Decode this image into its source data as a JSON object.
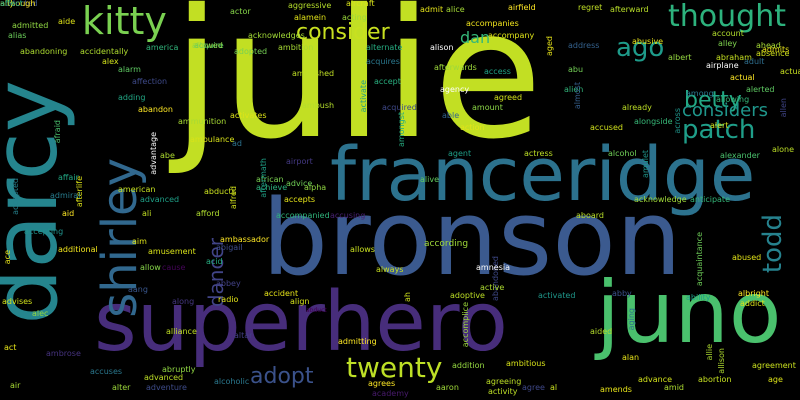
{
  "words": [
    {
      "text": "julie",
      "color": "#c2df23"
    },
    {
      "text": "bronson",
      "color": "#3b5a8f"
    },
    {
      "text": "franceridge",
      "color": "#2c728e"
    },
    {
      "text": "superhero",
      "color": "#472d7b"
    },
    {
      "text": "darcy",
      "color": "#25858e"
    },
    {
      "text": "juno",
      "color": "#4ac16d"
    },
    {
      "text": "shirley",
      "color": "#31688e"
    },
    {
      "text": "kitty",
      "color": "#7ad151"
    },
    {
      "text": "thought",
      "color": "#2db27d"
    },
    {
      "text": "twenty",
      "color": "#bddf26"
    },
    {
      "text": "consider",
      "color": "#c8e020"
    },
    {
      "text": "patch",
      "color": "#1f9e89"
    },
    {
      "text": "betty",
      "color": "#22a884"
    },
    {
      "text": "todd",
      "color": "#26828e"
    },
    {
      "text": "adopt",
      "color": "#3b528b"
    },
    {
      "text": "dancer",
      "color": "#414487"
    },
    {
      "text": "ago",
      "color": "#1e9b8a"
    },
    {
      "text": "considers",
      "color": "#1f968b"
    },
    {
      "text": "dan",
      "color": "#35b779"
    },
    {
      "text": "according",
      "color": "#a0da39"
    },
    {
      "text": "abduct",
      "color": "#440154"
    },
    {
      "text": "abandoned",
      "color": "#3e4989"
    },
    {
      "text": "advice",
      "color": "#70cf57"
    },
    {
      "text": "admitted",
      "color": "#90d743"
    },
    {
      "text": "actor",
      "color": "#86d549"
    },
    {
      "text": "aggressive",
      "color": "#b5de2b"
    },
    {
      "text": "aircraft",
      "color": "#d8e219"
    },
    {
      "text": "admit",
      "color": "#e5e419"
    },
    {
      "text": "alice",
      "color": "#a5db36"
    },
    {
      "text": "airfield",
      "color": "#fde725"
    },
    {
      "text": "regret",
      "color": "#c0df25"
    },
    {
      "text": "afterward",
      "color": "#b8de29"
    },
    {
      "text": "acting",
      "color": "#9bd93c"
    },
    {
      "text": "alamein",
      "color": "#e2e418"
    },
    {
      "text": "aide",
      "color": "#dfe318"
    },
    {
      "text": "alias",
      "color": "#6ccd5a"
    },
    {
      "text": "abandoning",
      "color": "#addc30"
    },
    {
      "text": "acknowledges",
      "color": "#a2da37"
    },
    {
      "text": "acquire",
      "color": "#52c569"
    },
    {
      "text": "accidentally",
      "color": "#b0dd2f"
    },
    {
      "text": "alex",
      "color": "#d2e21b"
    },
    {
      "text": "alarm",
      "color": "#5ec962"
    },
    {
      "text": "america",
      "color": "#31b57b"
    },
    {
      "text": "allowed",
      "color": "#8bd646"
    },
    {
      "text": "adopted",
      "color": "#75d054"
    },
    {
      "text": "ambition",
      "color": "#a8db34"
    },
    {
      "text": "alternate",
      "color": "#26ad81"
    },
    {
      "text": "alison",
      "color": "#ffffff"
    },
    {
      "text": "accompanies",
      "color": "#f1e51d"
    },
    {
      "text": "accompany",
      "color": "#dde318"
    },
    {
      "text": "aged",
      "color": "#e7e419"
    },
    {
      "text": "address",
      "color": "#34618d"
    },
    {
      "text": "abusive",
      "color": "#eae51a"
    },
    {
      "text": "albert",
      "color": "#95d840"
    },
    {
      "text": "abraham",
      "color": "#c5e021"
    },
    {
      "text": "account",
      "color": "#b2dd2d"
    },
    {
      "text": "adult",
      "color": "#2e6e8e"
    },
    {
      "text": "alley",
      "color": "#7fd34e"
    },
    {
      "text": "absence",
      "color": "#d0e11c"
    },
    {
      "text": "ahead",
      "color": "#a5db36"
    },
    {
      "text": "admits",
      "color": "#e8e419"
    },
    {
      "text": "actually",
      "color": "#c8e020"
    },
    {
      "text": "airplane",
      "color": "#ffffff"
    },
    {
      "text": "actual",
      "color": "#fde725"
    },
    {
      "text": "alerted",
      "color": "#5ec962"
    },
    {
      "text": "allowing",
      "color": "#35b779"
    },
    {
      "text": "among",
      "color": "#2a788e"
    },
    {
      "text": "alert",
      "color": "#d5e21a"
    },
    {
      "text": "alone",
      "color": "#bddf26"
    },
    {
      "text": "alexander",
      "color": "#4ac16d"
    },
    {
      "text": "allen",
      "color": "#404588"
    },
    {
      "text": "affection",
      "color": "#3e4a89"
    },
    {
      "text": "ambushed",
      "color": "#c0df25"
    },
    {
      "text": "acquires",
      "color": "#2a788e"
    },
    {
      "text": "accept",
      "color": "#29af7f"
    },
    {
      "text": "access",
      "color": "#20a386"
    },
    {
      "text": "afterwards",
      "color": "#9dd93b"
    },
    {
      "text": "agency",
      "color": "#ffffff"
    },
    {
      "text": "agreed",
      "color": "#d2e21b"
    },
    {
      "text": "alien",
      "color": "#31b57b"
    },
    {
      "text": "almost",
      "color": "#355f8d"
    },
    {
      "text": "abu",
      "color": "#73d056"
    },
    {
      "text": "amount",
      "color": "#8bd646"
    },
    {
      "text": "able",
      "color": "#32648e"
    },
    {
      "text": "action",
      "color": "#e2e418"
    },
    {
      "text": "accused",
      "color": "#d0e11c"
    },
    {
      "text": "already",
      "color": "#bddf26"
    },
    {
      "text": "alongside",
      "color": "#37b878"
    },
    {
      "text": "across",
      "color": "#1f958b"
    },
    {
      "text": "adding",
      "color": "#22a785"
    },
    {
      "text": "afraid",
      "color": "#4ac16d"
    },
    {
      "text": "abandon",
      "color": "#fde725"
    },
    {
      "text": "ammunition",
      "color": "#a8db34"
    },
    {
      "text": "ambulance",
      "color": "#d8e219"
    },
    {
      "text": "activates",
      "color": "#dde318"
    },
    {
      "text": "amongst",
      "color": "#26ad81"
    },
    {
      "text": "acquired",
      "color": "#3f4889"
    },
    {
      "text": "activate",
      "color": "#1e9b8a"
    },
    {
      "text": "ambush",
      "color": "#b5de2b"
    },
    {
      "text": "advantage",
      "color": "#ffffff"
    },
    {
      "text": "abe",
      "color": "#addc30"
    },
    {
      "text": "ad",
      "color": "#2c728e"
    },
    {
      "text": "airport",
      "color": "#443983"
    },
    {
      "text": "agent",
      "color": "#1f9f88"
    },
    {
      "text": "actress",
      "color": "#bddf26"
    },
    {
      "text": "alcohol",
      "color": "#70cf57"
    },
    {
      "text": "accepted",
      "color": "#26828e"
    },
    {
      "text": "affair",
      "color": "#22a884"
    },
    {
      "text": "afterlife",
      "color": "#dde318"
    },
    {
      "text": "admiral",
      "color": "#287c8e"
    },
    {
      "text": "african",
      "color": "#7ad151"
    },
    {
      "text": "achieve",
      "color": "#2db27d"
    },
    {
      "text": "alpha",
      "color": "#90d743"
    },
    {
      "text": "american",
      "color": "#c5e021"
    },
    {
      "text": "abducts",
      "color": "#cae11f"
    },
    {
      "text": "aftermath",
      "color": "#1fa187"
    },
    {
      "text": "alfred",
      "color": "#d2e21b"
    },
    {
      "text": "alive",
      "color": "#63cb5f"
    },
    {
      "text": "amulet",
      "color": "#1f958b"
    },
    {
      "text": "acknowledge",
      "color": "#a0da39"
    },
    {
      "text": "anticipate",
      "color": "#35b779"
    },
    {
      "text": "aid",
      "color": "#fde725"
    },
    {
      "text": "advanced",
      "color": "#1fa188"
    },
    {
      "text": "accepts",
      "color": "#e5e419"
    },
    {
      "text": "ali",
      "color": "#c2df23"
    },
    {
      "text": "afford",
      "color": "#b0dd2f"
    },
    {
      "text": "accompanied",
      "color": "#2fb47c"
    },
    {
      "text": "accusing",
      "color": "#482173"
    },
    {
      "text": "aboard",
      "color": "#b8de29"
    },
    {
      "text": "accepting",
      "color": "#20928c"
    },
    {
      "text": "additional",
      "color": "#f1e51d"
    },
    {
      "text": "amusement",
      "color": "#d8e219"
    },
    {
      "text": "acquaintance",
      "color": "#6ece58"
    },
    {
      "text": "abused",
      "color": "#e2e418"
    },
    {
      "text": "aim",
      "color": "#dfe318"
    },
    {
      "text": "ambassador",
      "color": "#fde725"
    },
    {
      "text": "abigail",
      "color": "#3e4c8a"
    },
    {
      "text": "allow",
      "color": "#86d549"
    },
    {
      "text": "cause",
      "color": "#450559"
    },
    {
      "text": "acid",
      "color": "#26ad81"
    },
    {
      "text": "allows",
      "color": "#c8e020"
    },
    {
      "text": "ace",
      "color": "#e8e419"
    },
    {
      "text": "aang",
      "color": "#39568c"
    },
    {
      "text": "abbey",
      "color": "#424186"
    },
    {
      "text": "accident",
      "color": "#e7e419"
    },
    {
      "text": "always",
      "color": "#c8e020"
    },
    {
      "text": "amnesia",
      "color": "#ffffff"
    },
    {
      "text": "albright",
      "color": "#fde725"
    },
    {
      "text": "addict",
      "color": "#dde318"
    },
    {
      "text": "advises",
      "color": "#d2e21b"
    },
    {
      "text": "along",
      "color": "#453781"
    },
    {
      "text": "radio",
      "color": "#e2e418"
    },
    {
      "text": "align",
      "color": "#d5e21a"
    },
    {
      "text": "ah",
      "color": "#d0e11c"
    },
    {
      "text": "adoptive",
      "color": "#bddf26"
    },
    {
      "text": "active",
      "color": "#addc30"
    },
    {
      "text": "activated",
      "color": "#1f988b"
    },
    {
      "text": "abby",
      "color": "#3b528b"
    },
    {
      "text": "ability",
      "color": "#1fa188"
    },
    {
      "text": "alec",
      "color": "#95d840"
    },
    {
      "text": "accomplice",
      "color": "#9dd93b"
    },
    {
      "text": "alliance",
      "color": "#c0df25"
    },
    {
      "text": "admitting",
      "color": "#fde725"
    },
    {
      "text": "aided",
      "color": "#b5de2b"
    },
    {
      "text": "aging",
      "color": "#2c728e"
    },
    {
      "text": "act",
      "color": "#e5e419"
    },
    {
      "text": "ambrose",
      "color": "#46337f"
    },
    {
      "text": "altar",
      "color": "#433e85"
    },
    {
      "text": "ambitious",
      "color": "#d8e219"
    },
    {
      "text": "alan",
      "color": "#e7e419"
    },
    {
      "text": "allie",
      "color": "#addc30"
    },
    {
      "text": "allison",
      "color": "#b0dd2f"
    },
    {
      "text": "agreement",
      "color": "#cae11f"
    },
    {
      "text": "air",
      "color": "#a8db34"
    },
    {
      "text": "accuses",
      "color": "#2a788e"
    },
    {
      "text": "advanced",
      "color": "#bddf26"
    },
    {
      "text": "abruptly",
      "color": "#90d743"
    },
    {
      "text": "addition",
      "color": "#95d840"
    },
    {
      "text": "agreeing",
      "color": "#bddf26"
    },
    {
      "text": "aaron",
      "color": "#a0da39"
    },
    {
      "text": "advance",
      "color": "#d2e21b"
    },
    {
      "text": "abortion",
      "color": "#c5e021"
    },
    {
      "text": "age",
      "color": "#dde318"
    },
    {
      "text": "alter",
      "color": "#9dd93b"
    },
    {
      "text": "adventure",
      "color": "#3e4c8a"
    },
    {
      "text": "alcoholic",
      "color": "#2a788e"
    },
    {
      "text": "agrees",
      "color": "#fde725"
    },
    {
      "text": "academy",
      "color": "#481b6d"
    },
    {
      "text": "activity",
      "color": "#bddf26"
    },
    {
      "text": "agree",
      "color": "#3f4889"
    },
    {
      "text": "al",
      "color": "#c8e020"
    },
    {
      "text": "amends",
      "color": "#e7e419"
    },
    {
      "text": "amid",
      "color": "#addc30"
    },
    {
      "text": "ally",
      "color": "#e5e419"
    },
    {
      "text": "abducted",
      "color": "#3b528b"
    },
    {
      "text": "although",
      "color": "#fde725"
    },
    {
      "text": "affect",
      "color": "#26ad81"
    }
  ]
}
